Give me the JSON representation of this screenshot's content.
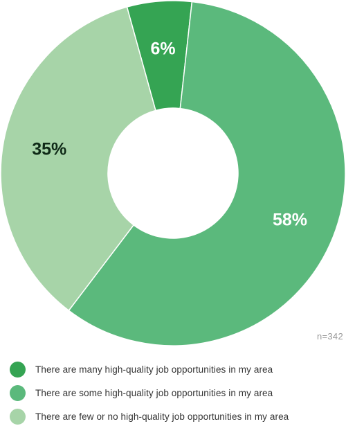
{
  "chart_data": {
    "type": "pie",
    "donut": true,
    "categories": [
      "There are many high-quality job opportunities in my area",
      "There are some high-quality job opportunities in my area",
      "There are few or no high-quality job opportunities in my area"
    ],
    "values": [
      6,
      58,
      35
    ],
    "value_labels": [
      "6%",
      "58%",
      "35%"
    ],
    "colors": [
      "#35a453",
      "#5bb97c",
      "#a7d4a8"
    ],
    "label_colors": [
      "#ffffff",
      "#ffffff",
      "#0f2a17"
    ],
    "legend_position": "bottom",
    "annotation": "n=342"
  }
}
